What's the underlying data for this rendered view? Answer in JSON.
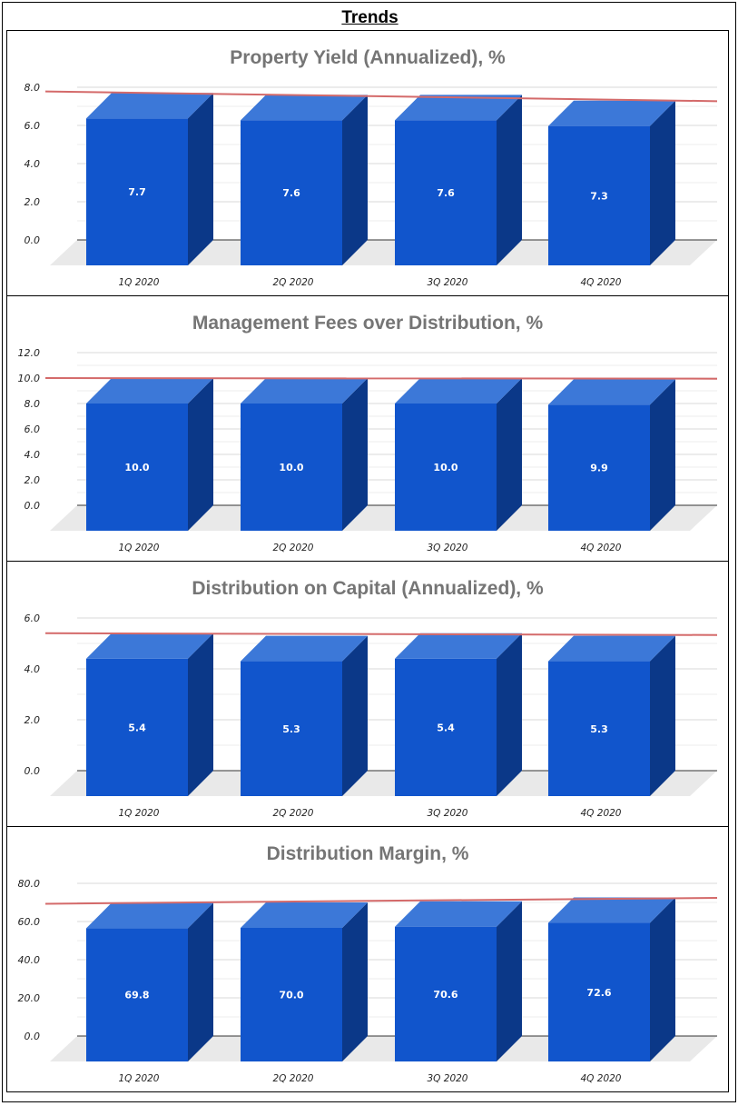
{
  "page": {
    "title": "Trends"
  },
  "colors": {
    "bar_front": "#1155cc",
    "bar_top": "#3c78d8",
    "bar_side": "#0b3888",
    "floor": "#e9e9e9",
    "trendline": "#d46a6a",
    "grid": "#d9d9d9",
    "baseline": "#333333"
  },
  "chart_data": [
    {
      "type": "bar",
      "title": "Property Yield (Annualized), %",
      "categories": [
        "1Q 2020",
        "2Q 2020",
        "3Q 2020",
        "4Q 2020"
      ],
      "values": [
        7.7,
        7.6,
        7.6,
        7.3
      ],
      "value_labels": [
        "7.7",
        "7.6",
        "7.6",
        "7.3"
      ],
      "yticks": [
        "0.0",
        "2.0",
        "4.0",
        "6.0",
        "8.0"
      ],
      "ylim": [
        0,
        8
      ],
      "trendline": [
        7.78,
        7.27
      ],
      "xlabel": "",
      "ylabel": ""
    },
    {
      "type": "bar",
      "title": "Management Fees over Distribution, %",
      "categories": [
        "1Q 2020",
        "2Q 2020",
        "3Q 2020",
        "4Q 2020"
      ],
      "values": [
        10.0,
        10.0,
        10.0,
        9.9
      ],
      "value_labels": [
        "10.0",
        "10.0",
        "10.0",
        "9.9"
      ],
      "yticks": [
        "0.0",
        "2.0",
        "4.0",
        "6.0",
        "8.0",
        "10.0",
        "12.0"
      ],
      "ylim": [
        0,
        12
      ],
      "trendline": [
        10.0,
        9.95
      ],
      "xlabel": "",
      "ylabel": ""
    },
    {
      "type": "bar",
      "title": "Distribution on Capital (Annualized), %",
      "categories": [
        "1Q 2020",
        "2Q 2020",
        "3Q 2020",
        "4Q 2020"
      ],
      "values": [
        5.4,
        5.3,
        5.4,
        5.3
      ],
      "value_labels": [
        "5.4",
        "5.3",
        "5.4",
        "5.3"
      ],
      "yticks": [
        "0.0",
        "2.0",
        "4.0",
        "6.0"
      ],
      "ylim": [
        0,
        6
      ],
      "trendline": [
        5.4,
        5.33
      ],
      "xlabel": "",
      "ylabel": ""
    },
    {
      "type": "bar",
      "title": "Distribution Margin, %",
      "categories": [
        "1Q 2020",
        "2Q 2020",
        "3Q 2020",
        "4Q 2020"
      ],
      "values": [
        69.8,
        70.0,
        70.6,
        72.6
      ],
      "value_labels": [
        "69.8",
        "70.0",
        "70.6",
        "72.6"
      ],
      "yticks": [
        "0.0",
        "20.0",
        "40.0",
        "60.0",
        "80.0"
      ],
      "ylim": [
        0,
        80
      ],
      "trendline": [
        69.3,
        72.4
      ],
      "xlabel": "",
      "ylabel": ""
    }
  ]
}
